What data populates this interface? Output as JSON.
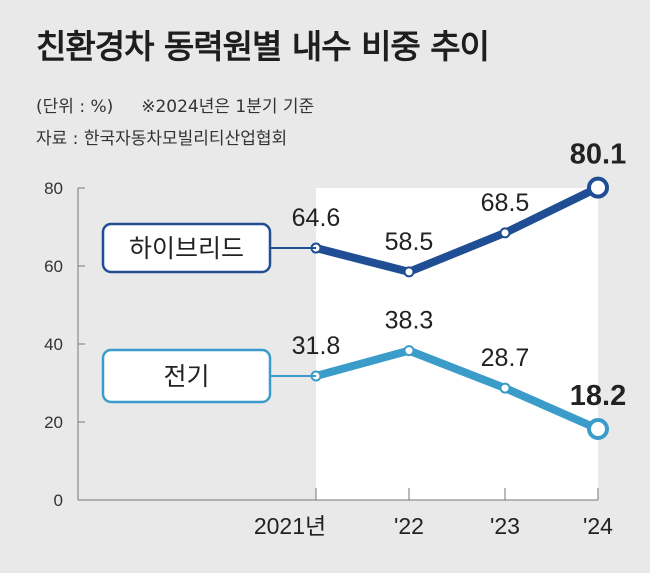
{
  "title": "친환경차 동력원별 내수 비중 추이",
  "unit_note": "(단위 : %)",
  "period_note": "※2024년은 1분기 기준",
  "source": "자료 : 한국자동차모빌리티산업협회",
  "chart_data": {
    "type": "line",
    "title": "친환경차 동력원별 내수 비중 추이",
    "xlabel": "",
    "ylabel": "",
    "categories": [
      "2021년",
      "'22",
      "'23",
      "'24"
    ],
    "yticks": [
      0,
      20,
      40,
      60,
      80
    ],
    "ylim": [
      0,
      80
    ],
    "grid": false,
    "series": [
      {
        "name": "하이브리드",
        "values": [
          64.6,
          58.5,
          68.5,
          80.1
        ],
        "labels": [
          "64.6",
          "58.5",
          "68.5",
          "80.1"
        ],
        "color": "#1f4e94"
      },
      {
        "name": "전기",
        "values": [
          31.8,
          38.3,
          28.7,
          18.2
        ],
        "labels": [
          "31.8",
          "38.3",
          "28.7",
          "18.2"
        ],
        "color": "#3c9cc9"
      }
    ]
  }
}
